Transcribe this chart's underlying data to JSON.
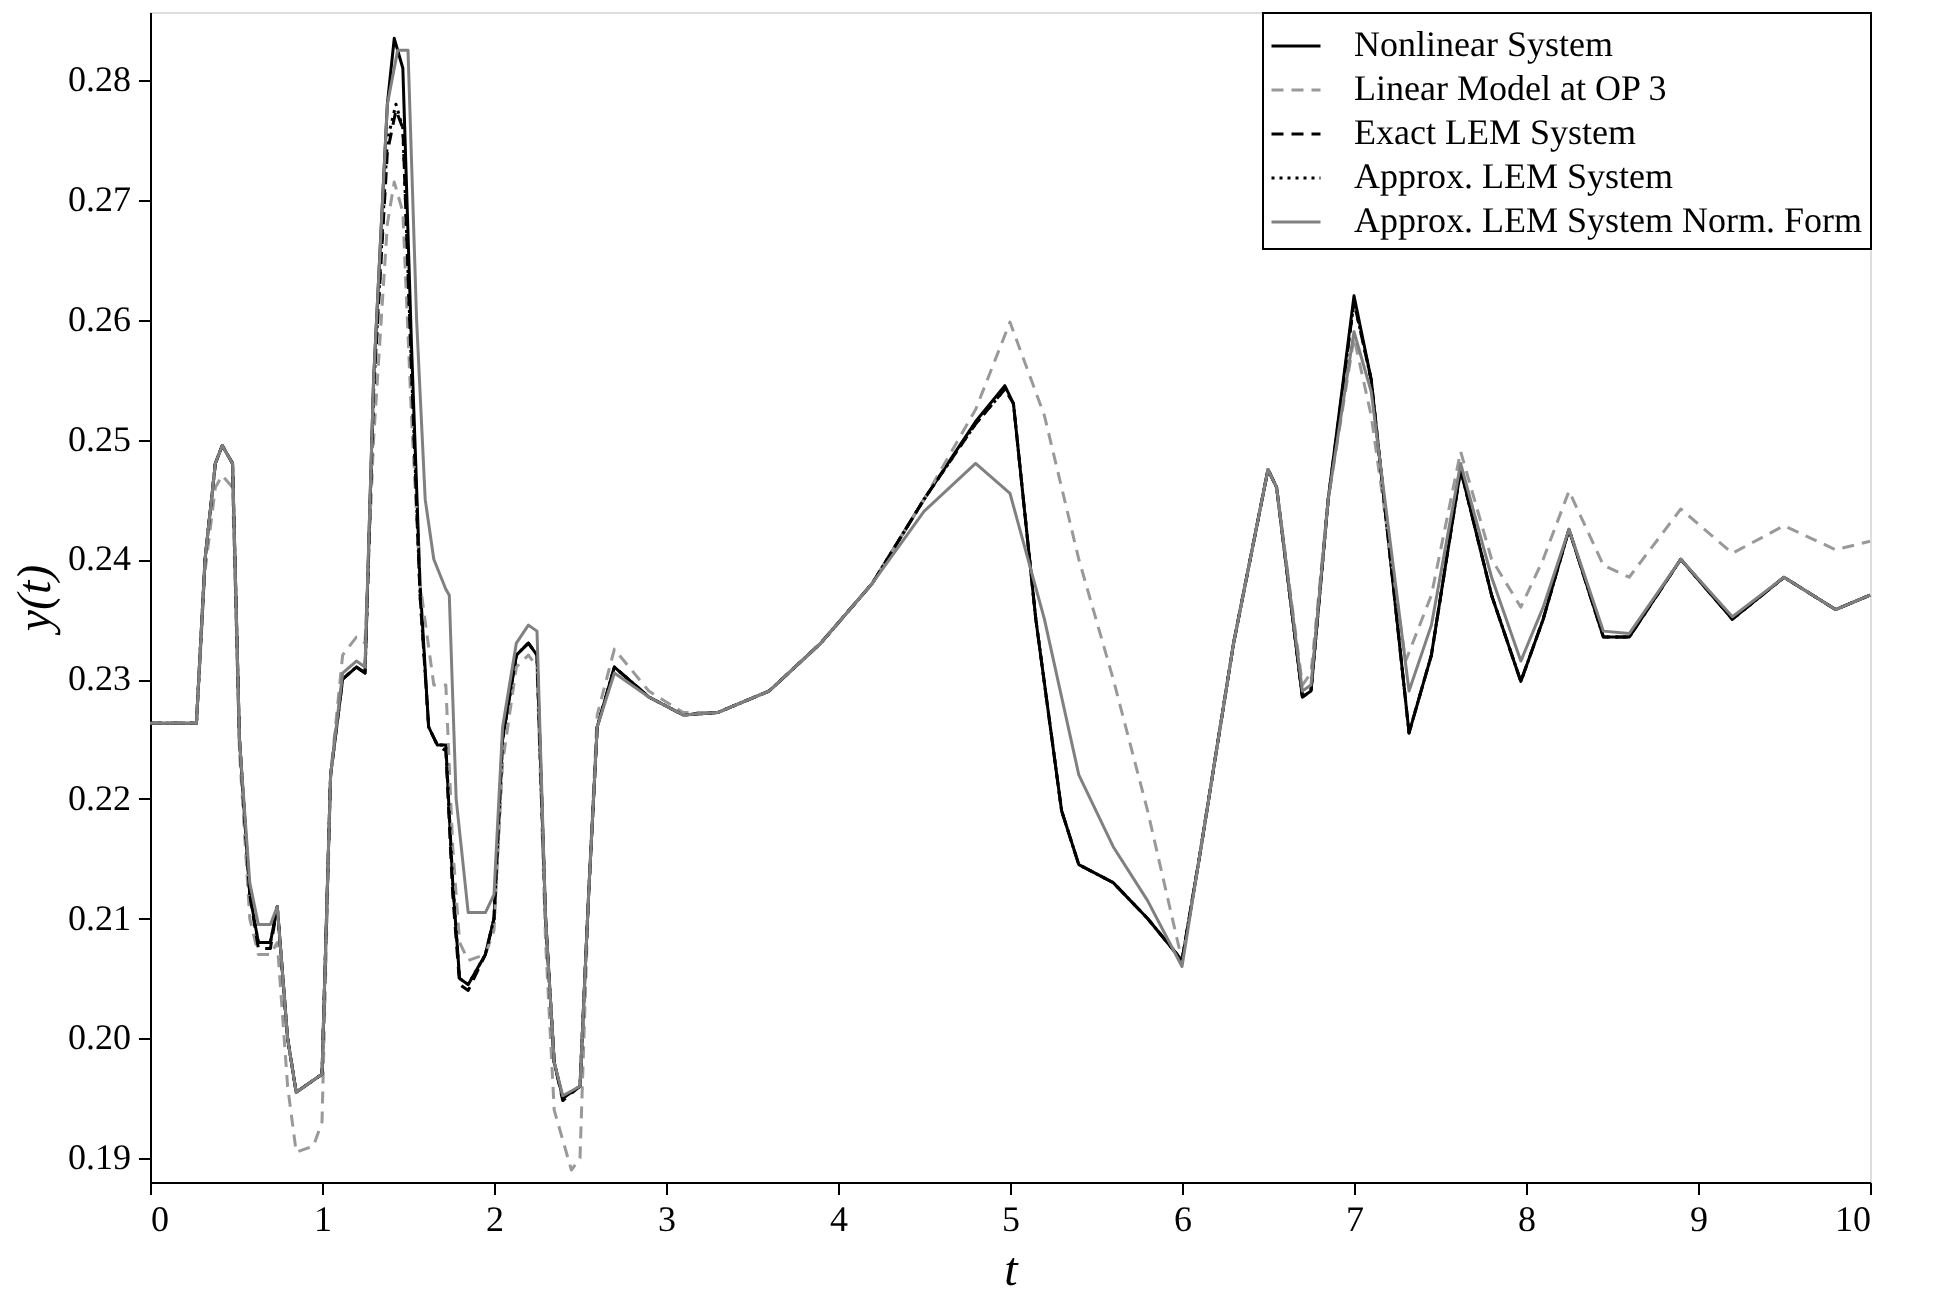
{
  "chart_data": {
    "type": "line",
    "xlabel": "t",
    "ylabel": "y(t)",
    "xlim": [
      0,
      10
    ],
    "xticks": [
      0,
      1,
      2,
      3,
      4,
      5,
      6,
      7,
      8,
      9,
      10
    ],
    "ylim": [
      0.188,
      0.2857
    ],
    "yticks": [
      0.19,
      {
        "value": 0.2,
        "label": "0.20"
      },
      0.21,
      0.22,
      0.23,
      0.24,
      0.25,
      0.26,
      0.27,
      0.28
    ],
    "grid": false,
    "legend": "top right",
    "series": [
      {
        "name": "Nonlinear System",
        "color": "#000000",
        "line_style": "solid",
        "x": [
          0,
          0.27,
          0.32,
          0.38,
          0.42,
          0.48,
          0.52,
          0.58,
          0.63,
          0.7,
          0.74,
          0.8,
          0.85,
          0.95,
          1.0,
          1.05,
          1.12,
          1.2,
          1.25,
          1.3,
          1.38,
          1.42,
          1.47,
          1.52,
          1.57,
          1.62,
          1.67,
          1.72,
          1.76,
          1.8,
          1.85,
          1.95,
          2.0,
          2.05,
          2.13,
          2.2,
          2.25,
          2.3,
          2.35,
          2.4,
          2.5,
          2.55,
          2.6,
          2.7,
          2.9,
          3.1,
          3.3,
          3.6,
          3.9,
          4.2,
          4.5,
          4.8,
          4.97,
          5.02,
          5.15,
          5.3,
          5.4,
          5.6,
          5.8,
          6.0,
          6.1,
          6.3,
          6.5,
          6.55,
          6.7,
          6.75,
          6.85,
          7.0,
          7.1,
          7.32,
          7.45,
          7.62,
          7.8,
          7.97,
          8.1,
          8.25,
          8.45,
          8.6,
          8.9,
          9.2,
          9.5,
          9.8,
          10.0
        ],
        "values": [
          0.2263,
          0.2263,
          0.24,
          0.248,
          0.2495,
          0.248,
          0.225,
          0.212,
          0.208,
          0.208,
          0.211,
          0.2,
          0.1955,
          0.1965,
          0.197,
          0.222,
          0.23,
          0.231,
          0.2305,
          0.255,
          0.278,
          0.2835,
          0.281,
          0.258,
          0.238,
          0.226,
          0.2245,
          0.2245,
          0.213,
          0.205,
          0.2045,
          0.207,
          0.21,
          0.225,
          0.232,
          0.233,
          0.232,
          0.21,
          0.198,
          0.195,
          0.196,
          0.212,
          0.226,
          0.231,
          0.2285,
          0.227,
          0.2272,
          0.229,
          0.233,
          0.238,
          0.245,
          0.2515,
          0.2545,
          0.253,
          0.235,
          0.219,
          0.2145,
          0.213,
          0.21,
          0.2065,
          0.215,
          0.233,
          0.2475,
          0.246,
          0.2285,
          0.229,
          0.245,
          0.262,
          0.255,
          0.2255,
          0.232,
          0.2475,
          0.237,
          0.2298,
          0.235,
          0.2425,
          0.2335,
          0.2335,
          0.24,
          0.235,
          0.2385,
          0.2358,
          0.237
        ]
      },
      {
        "name": "Linear Model at OP 3",
        "color": "#999999",
        "line_style": "dashed",
        "x": [
          0,
          0.27,
          0.32,
          0.38,
          0.42,
          0.48,
          0.52,
          0.58,
          0.63,
          0.7,
          0.74,
          0.8,
          0.85,
          0.95,
          1.0,
          1.05,
          1.12,
          1.2,
          1.25,
          1.3,
          1.38,
          1.42,
          1.47,
          1.52,
          1.57,
          1.65,
          1.72,
          1.76,
          1.8,
          1.85,
          1.95,
          2.0,
          2.05,
          2.13,
          2.2,
          2.25,
          2.3,
          2.35,
          2.45,
          2.5,
          2.55,
          2.6,
          2.7,
          2.9,
          3.1,
          3.3,
          3.6,
          3.9,
          4.2,
          4.5,
          4.8,
          5.0,
          5.2,
          5.4,
          5.6,
          5.8,
          6.0,
          6.1,
          6.3,
          6.5,
          6.55,
          6.7,
          6.75,
          6.85,
          7.0,
          7.1,
          7.3,
          7.45,
          7.62,
          7.8,
          7.97,
          8.1,
          8.25,
          8.45,
          8.6,
          8.9,
          9.2,
          9.5,
          9.8,
          10.0
        ],
        "values": [
          0.2263,
          0.2263,
          0.239,
          0.246,
          0.247,
          0.246,
          0.224,
          0.21,
          0.207,
          0.207,
          0.208,
          0.196,
          0.1905,
          0.191,
          0.193,
          0.222,
          0.232,
          0.2335,
          0.233,
          0.25,
          0.268,
          0.2715,
          0.269,
          0.252,
          0.238,
          0.2295,
          0.2295,
          0.216,
          0.208,
          0.2065,
          0.207,
          0.209,
          0.223,
          0.231,
          0.232,
          0.231,
          0.208,
          0.194,
          0.189,
          0.19,
          0.212,
          0.227,
          0.2325,
          0.229,
          0.2272,
          0.2272,
          0.229,
          0.233,
          0.238,
          0.245,
          0.2525,
          0.2598,
          0.252,
          0.24,
          0.23,
          0.219,
          0.2065,
          0.215,
          0.233,
          0.2475,
          0.246,
          0.2295,
          0.2305,
          0.245,
          0.2585,
          0.252,
          0.2315,
          0.237,
          0.249,
          0.24,
          0.236,
          0.24,
          0.2457,
          0.2395,
          0.2385,
          0.2442,
          0.2405,
          0.2428,
          0.2408,
          0.2415
        ]
      },
      {
        "name": "Exact LEM System",
        "color": "#000000",
        "line_style": "dashed",
        "x": [
          0,
          0.27,
          0.32,
          0.38,
          0.42,
          0.48,
          0.52,
          0.58,
          0.63,
          0.7,
          0.74,
          0.8,
          0.85,
          0.95,
          1.0,
          1.05,
          1.12,
          1.2,
          1.25,
          1.3,
          1.38,
          1.43,
          1.47,
          1.52,
          1.57,
          1.62,
          1.67,
          1.72,
          1.76,
          1.8,
          1.85,
          1.95,
          2.0,
          2.05,
          2.13,
          2.2,
          2.25,
          2.3,
          2.35,
          2.4,
          2.5,
          2.55,
          2.6,
          2.7,
          2.9,
          3.1,
          3.3,
          3.6,
          3.9,
          4.2,
          4.5,
          4.8,
          4.97,
          5.02,
          5.15,
          5.3,
          5.4,
          5.6,
          5.8,
          6.0,
          6.1,
          6.3,
          6.5,
          6.55,
          6.7,
          6.75,
          6.85,
          7.0,
          7.1,
          7.32,
          7.45,
          7.62,
          7.8,
          7.97,
          8.1,
          8.25,
          8.45,
          8.6,
          8.9,
          9.2,
          9.5,
          9.8,
          10.0
        ],
        "values": [
          0.2263,
          0.2263,
          0.24,
          0.248,
          0.2495,
          0.248,
          0.225,
          0.212,
          0.2075,
          0.2075,
          0.211,
          0.2,
          0.1955,
          0.1965,
          0.197,
          0.222,
          0.23,
          0.231,
          0.2305,
          0.254,
          0.274,
          0.2775,
          0.276,
          0.256,
          0.237,
          0.226,
          0.2245,
          0.224,
          0.212,
          0.2045,
          0.204,
          0.207,
          0.21,
          0.225,
          0.232,
          0.233,
          0.232,
          0.21,
          0.198,
          0.1948,
          0.196,
          0.212,
          0.226,
          0.231,
          0.2285,
          0.227,
          0.2272,
          0.229,
          0.233,
          0.238,
          0.245,
          0.2513,
          0.2542,
          0.253,
          0.235,
          0.219,
          0.2145,
          0.213,
          0.21,
          0.2065,
          0.215,
          0.233,
          0.2475,
          0.246,
          0.2285,
          0.229,
          0.245,
          0.2615,
          0.255,
          0.2255,
          0.232,
          0.2475,
          0.237,
          0.2298,
          0.235,
          0.2425,
          0.2335,
          0.2335,
          0.24,
          0.235,
          0.2385,
          0.2358,
          0.237
        ]
      },
      {
        "name": "Approx. LEM System",
        "color": "#000000",
        "line_style": "dotted",
        "x": [
          0,
          0.27,
          0.32,
          0.38,
          0.42,
          0.48,
          0.52,
          0.58,
          0.63,
          0.7,
          0.74,
          0.8,
          0.85,
          0.95,
          1.0,
          1.05,
          1.12,
          1.2,
          1.25,
          1.3,
          1.38,
          1.43,
          1.47,
          1.52,
          1.57,
          1.62,
          1.67,
          1.72,
          1.76,
          1.8,
          1.85,
          1.95,
          2.0,
          2.05,
          2.13,
          2.2,
          2.25,
          2.3,
          2.35,
          2.4,
          2.5,
          2.55,
          2.6,
          2.7,
          2.9,
          3.1,
          3.3,
          3.6,
          3.9,
          4.2,
          4.5,
          4.8,
          4.97,
          5.02,
          5.15,
          5.3,
          5.4,
          5.6,
          5.8,
          6.0,
          6.1,
          6.3,
          6.5,
          6.55,
          6.7,
          6.75,
          6.85,
          7.0,
          7.1,
          7.32,
          7.45,
          7.62,
          7.8,
          7.97,
          8.1,
          8.25,
          8.45,
          8.6,
          8.9,
          9.2,
          9.5,
          9.8,
          10.0
        ],
        "values": [
          0.2263,
          0.2263,
          0.24,
          0.248,
          0.2495,
          0.248,
          0.225,
          0.212,
          0.208,
          0.208,
          0.211,
          0.2,
          0.1955,
          0.1965,
          0.197,
          0.222,
          0.23,
          0.231,
          0.2305,
          0.254,
          0.275,
          0.278,
          0.276,
          0.256,
          0.237,
          0.226,
          0.2245,
          0.2245,
          0.213,
          0.205,
          0.2045,
          0.207,
          0.21,
          0.225,
          0.232,
          0.233,
          0.232,
          0.21,
          0.198,
          0.195,
          0.196,
          0.212,
          0.226,
          0.231,
          0.2285,
          0.227,
          0.2272,
          0.229,
          0.233,
          0.238,
          0.245,
          0.2513,
          0.2542,
          0.253,
          0.235,
          0.219,
          0.2145,
          0.213,
          0.21,
          0.2065,
          0.215,
          0.233,
          0.2475,
          0.246,
          0.2285,
          0.229,
          0.245,
          0.2615,
          0.255,
          0.2255,
          0.232,
          0.2475,
          0.237,
          0.2298,
          0.235,
          0.2425,
          0.2335,
          0.2335,
          0.24,
          0.235,
          0.2385,
          0.2358,
          0.237
        ]
      },
      {
        "name": "Approx. LEM System Norm. Form",
        "color": "#808080",
        "line_style": "solid",
        "x": [
          0,
          0.27,
          0.32,
          0.38,
          0.42,
          0.48,
          0.52,
          0.58,
          0.63,
          0.7,
          0.74,
          0.8,
          0.85,
          0.95,
          1.0,
          1.05,
          1.12,
          1.2,
          1.25,
          1.3,
          1.38,
          1.44,
          1.5,
          1.55,
          1.6,
          1.65,
          1.72,
          1.74,
          1.78,
          1.85,
          1.95,
          2.0,
          2.05,
          2.13,
          2.2,
          2.25,
          2.3,
          2.35,
          2.4,
          2.5,
          2.55,
          2.6,
          2.7,
          2.9,
          3.1,
          3.3,
          3.6,
          3.9,
          4.2,
          4.5,
          4.8,
          5.0,
          5.2,
          5.4,
          5.6,
          5.8,
          6.0,
          6.1,
          6.3,
          6.5,
          6.55,
          6.7,
          6.75,
          6.85,
          7.0,
          7.1,
          7.32,
          7.45,
          7.62,
          7.8,
          7.97,
          8.1,
          8.25,
          8.45,
          8.6,
          8.9,
          9.2,
          9.5,
          9.8,
          10.0
        ],
        "values": [
          0.2263,
          0.2263,
          0.24,
          0.248,
          0.2495,
          0.248,
          0.225,
          0.213,
          0.2095,
          0.2095,
          0.211,
          0.2,
          0.1955,
          0.1965,
          0.197,
          0.222,
          0.2305,
          0.2315,
          0.231,
          0.255,
          0.278,
          0.2825,
          0.2825,
          0.26,
          0.245,
          0.24,
          0.2375,
          0.237,
          0.22,
          0.2105,
          0.2105,
          0.212,
          0.226,
          0.233,
          0.2345,
          0.234,
          0.21,
          0.198,
          0.1952,
          0.196,
          0.212,
          0.226,
          0.2305,
          0.2285,
          0.227,
          0.2272,
          0.229,
          0.233,
          0.238,
          0.244,
          0.248,
          0.2455,
          0.235,
          0.222,
          0.216,
          0.2115,
          0.206,
          0.215,
          0.233,
          0.2475,
          0.246,
          0.229,
          0.2295,
          0.245,
          0.259,
          0.254,
          0.229,
          0.2345,
          0.248,
          0.2385,
          0.2315,
          0.236,
          0.2425,
          0.234,
          0.2338,
          0.24,
          0.2352,
          0.2385,
          0.2358,
          0.237
        ]
      }
    ]
  }
}
